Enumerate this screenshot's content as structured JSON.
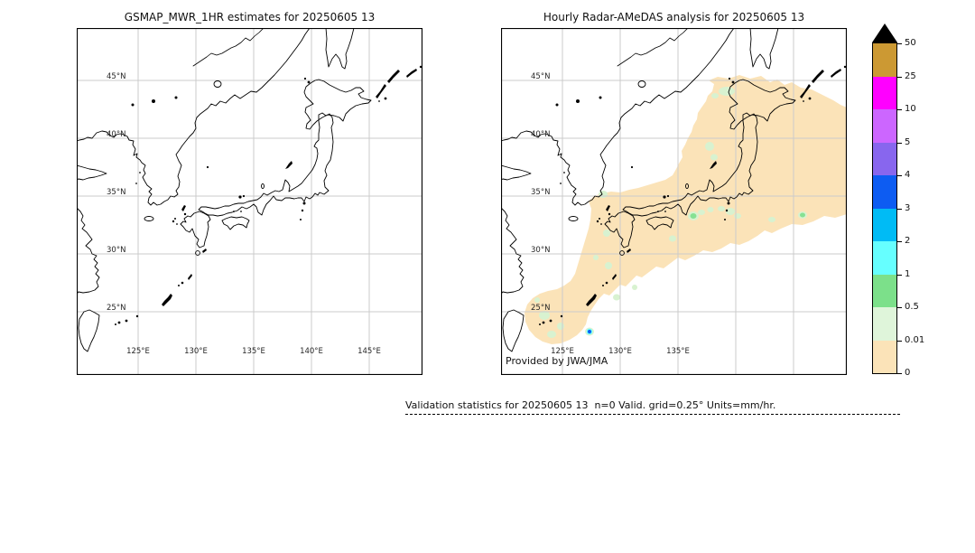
{
  "figure": {
    "background": "#ffffff"
  },
  "panels": [
    {
      "id": "gsmap",
      "title": "GSMAP_MWR_1HR estimates for 20250605 13",
      "lat_labels": [
        "45°N",
        "40°N",
        "35°N",
        "30°N",
        "25°N"
      ],
      "lon_labels": [
        "125°E",
        "130°E",
        "135°E",
        "140°E",
        "145°E"
      ],
      "annotation": ""
    },
    {
      "id": "radar",
      "title": "Hourly Radar-AMeDAS analysis for 20250605 13",
      "lat_labels": [
        "45°N",
        "40°N",
        "35°N",
        "30°N",
        "25°N"
      ],
      "lon_labels": [
        "125°E",
        "130°E",
        "135°E"
      ],
      "annotation": "Provided by JWA/JMA"
    }
  ],
  "colorbar": {
    "tick_labels": [
      "50",
      "25",
      "10",
      "5",
      "4",
      "3",
      "2",
      "1",
      "0.5",
      "0.01",
      "0"
    ],
    "segment_colors_top_to_bottom": [
      "#cc9933",
      "#ff00ff",
      "#cc66ff",
      "#8866ee",
      "#0d5cf2",
      "#00bbf5",
      "#66ffff",
      "#7ce08a",
      "#dff5da",
      "#fbe3b8"
    ],
    "overflow_triangle_color": "#000000"
  },
  "caption": "Validation statistics for 20250605 13  n=0 Valid. grid=0.25° Units=mm/hr.",
  "map_colors": {
    "gridline": "#cbcbcb",
    "coastline": "#000000",
    "precip_trace": "#fbe3b8",
    "precip_light": "#d8f2d0",
    "precip_medium_green": "#86e193",
    "precip_cyan": "#66ffff",
    "precip_blue": "#0d5cf2"
  },
  "chart_data": {
    "type": "heatmap",
    "title": "GSMAP vs Radar-AMeDAS hourly precipitation validation, 2025-06-05 13",
    "units": "mm/hr",
    "grid_resolution": "0.25 deg",
    "panels": [
      {
        "name": "GSMAP_MWR_1HR estimates for 20250605 13",
        "lon_range_deg_e": [
          120,
          149.5
        ],
        "lat_range_deg_n": [
          20,
          49.5
        ],
        "graticule_interval_deg": 5,
        "data": "empty — no GSMAP microwave estimates in domain at this hour (n=0)"
      },
      {
        "name": "Hourly Radar-AMeDAS analysis for 20250605 13",
        "lon_range_deg_e": [
          120,
          149.5
        ],
        "lat_range_deg_n": [
          20,
          49.5
        ],
        "graticule_interval_deg": 5,
        "data": "broad SW-NE band of trace precipitation 0-0.01 mm/hr from the Ryukyu Islands (~24N,124E) across Kyushu, Shikoku, Honshu to Hokkaido (~45.5N,147E); scattered 0.01-0.5 mm/hr patches along the band; small 0.5-1 mm/hr spots near 33N,136E and 33N,145.5E; isolated maximum ~3-4 mm/hr (blue dot) near 23.5N,127E east of Taiwan"
      }
    ],
    "colorbar": {
      "levels_mm_per_hr": [
        0,
        0.01,
        0.5,
        1,
        2,
        3,
        4,
        5,
        10,
        25,
        50
      ],
      "colors_low_to_high": [
        "#fbe3b8",
        "#dff5da",
        "#7ce08a",
        "#66ffff",
        "#00bbf5",
        "#0d5cf2",
        "#8866ee",
        "#cc66ff",
        "#ff00ff",
        "#cc9933"
      ],
      "over_max_color": "#000000",
      "legend_position": "right"
    }
  }
}
